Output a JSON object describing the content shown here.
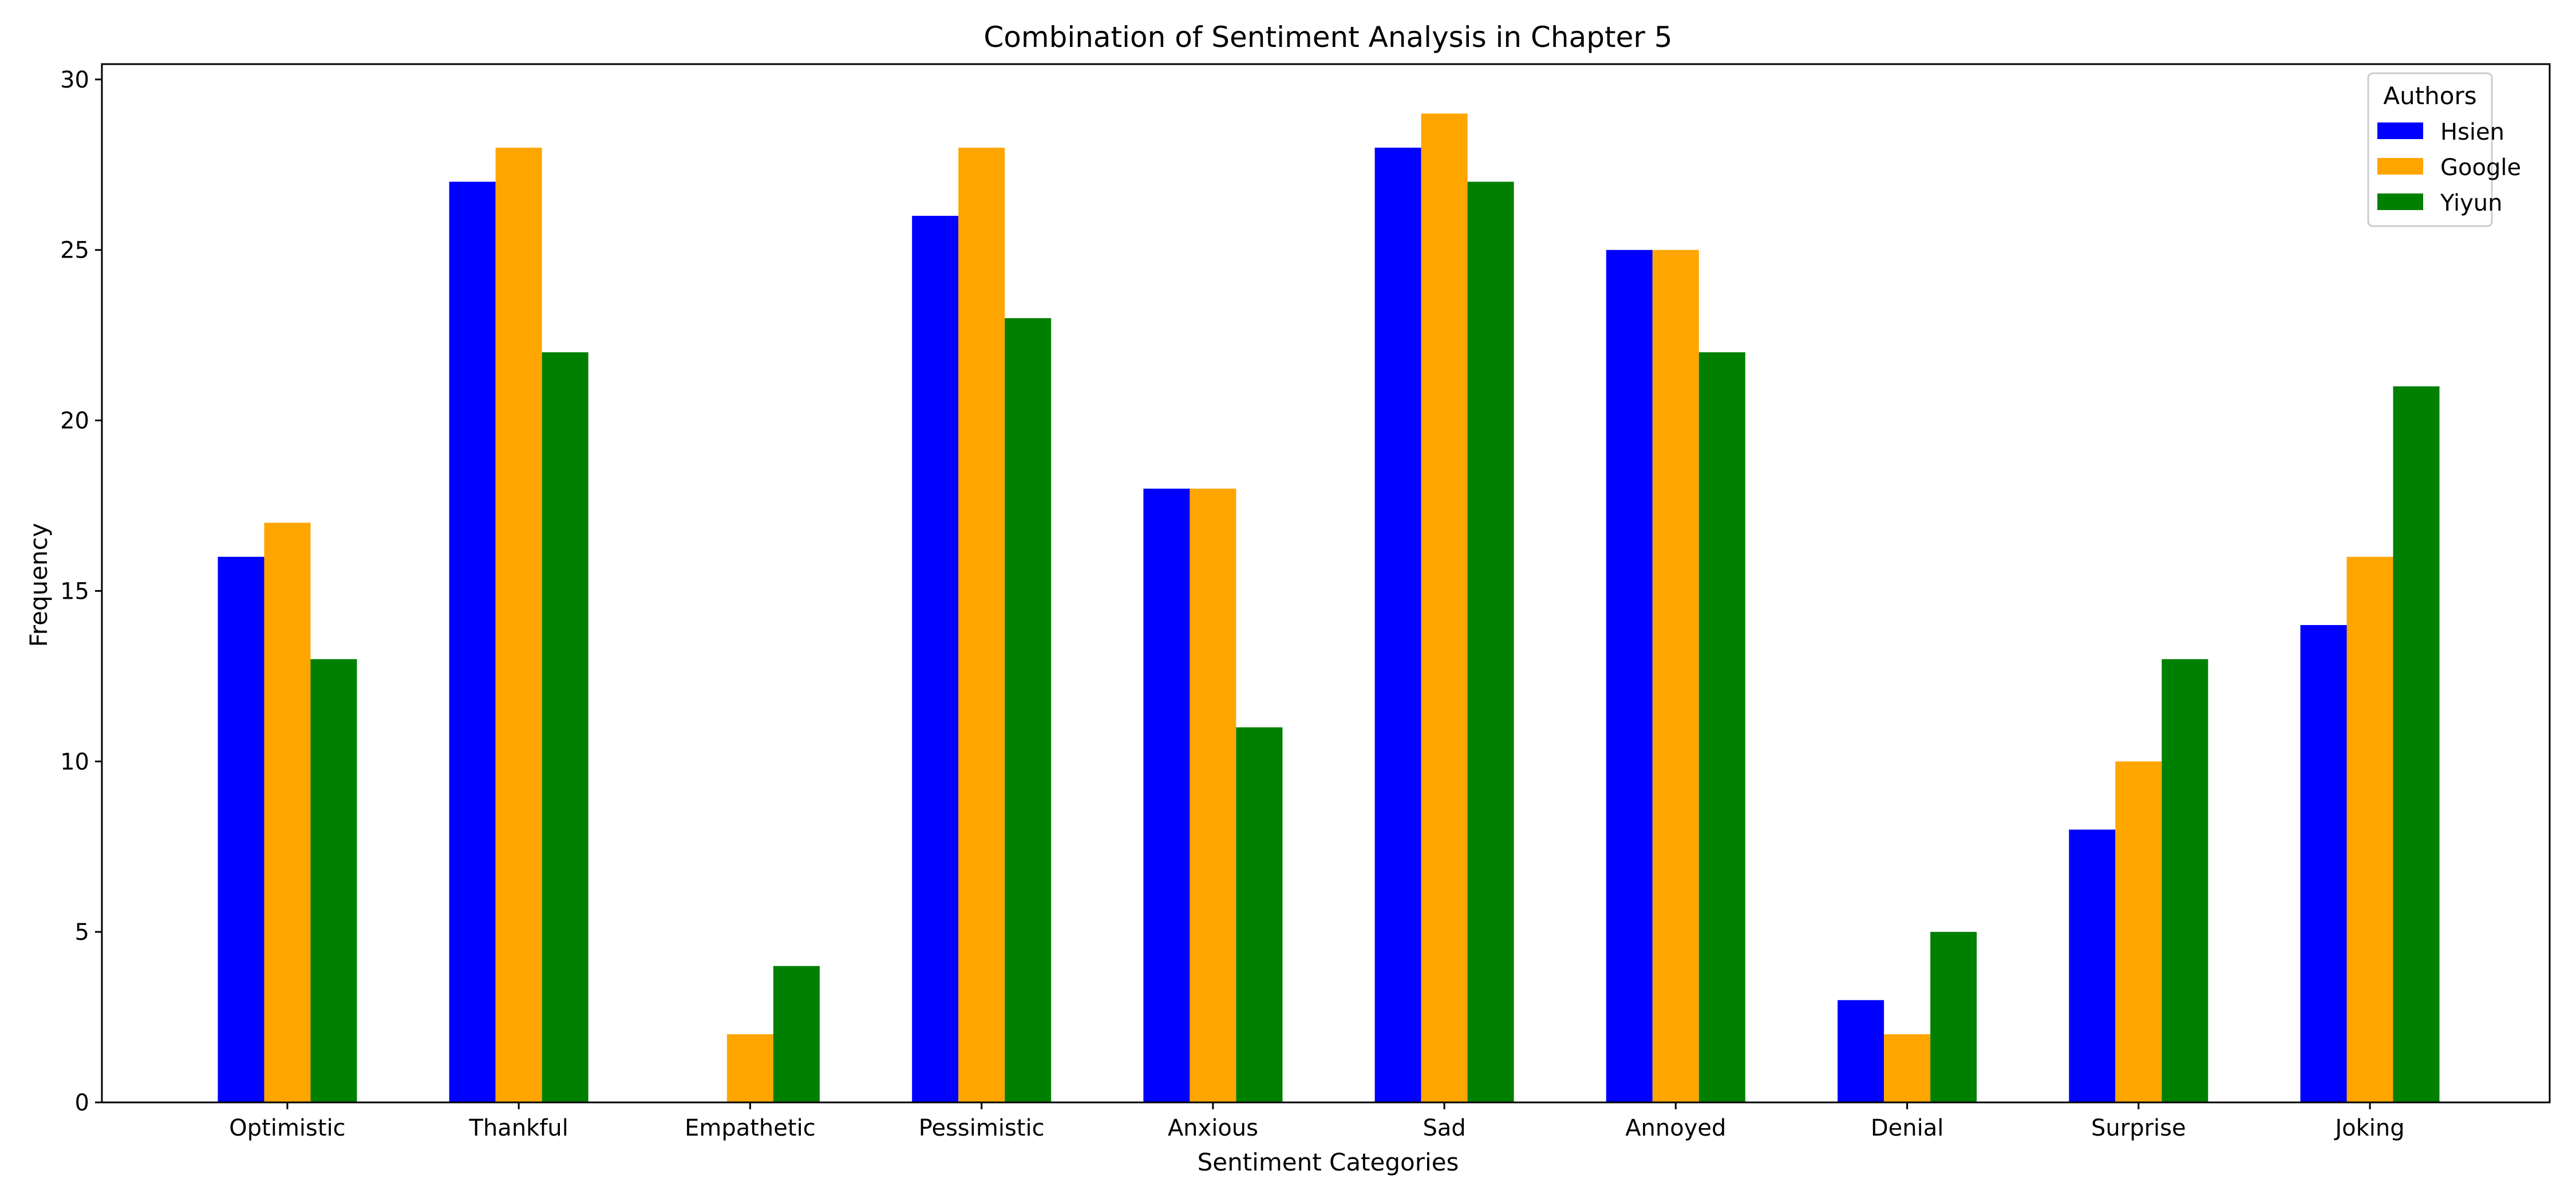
{
  "chart_data": {
    "type": "bar",
    "title": "Combination of Sentiment Analysis in Chapter 5",
    "xlabel": "Sentiment Categories",
    "ylabel": "Frequency",
    "categories": [
      "Optimistic",
      "Thankful",
      "Empathetic",
      "Pessimistic",
      "Anxious",
      "Sad",
      "Annoyed",
      "Denial",
      "Surprise",
      "Joking"
    ],
    "series": [
      {
        "name": "Hsien",
        "color": "#0000ff",
        "values": [
          16,
          27,
          0,
          26,
          18,
          28,
          25,
          3,
          8,
          14
        ]
      },
      {
        "name": "Google",
        "color": "#ffa500",
        "values": [
          17,
          28,
          2,
          28,
          18,
          29,
          25,
          2,
          10,
          16
        ]
      },
      {
        "name": "Yiyun",
        "color": "#008000",
        "values": [
          13,
          22,
          4,
          23,
          11,
          27,
          22,
          5,
          13,
          21
        ]
      }
    ],
    "ylim": [
      0,
      30.45
    ],
    "yticks": [
      0,
      5,
      10,
      15,
      20,
      25,
      30
    ],
    "grid": false,
    "legend": {
      "title": "Authors",
      "position": "top-right"
    }
  }
}
